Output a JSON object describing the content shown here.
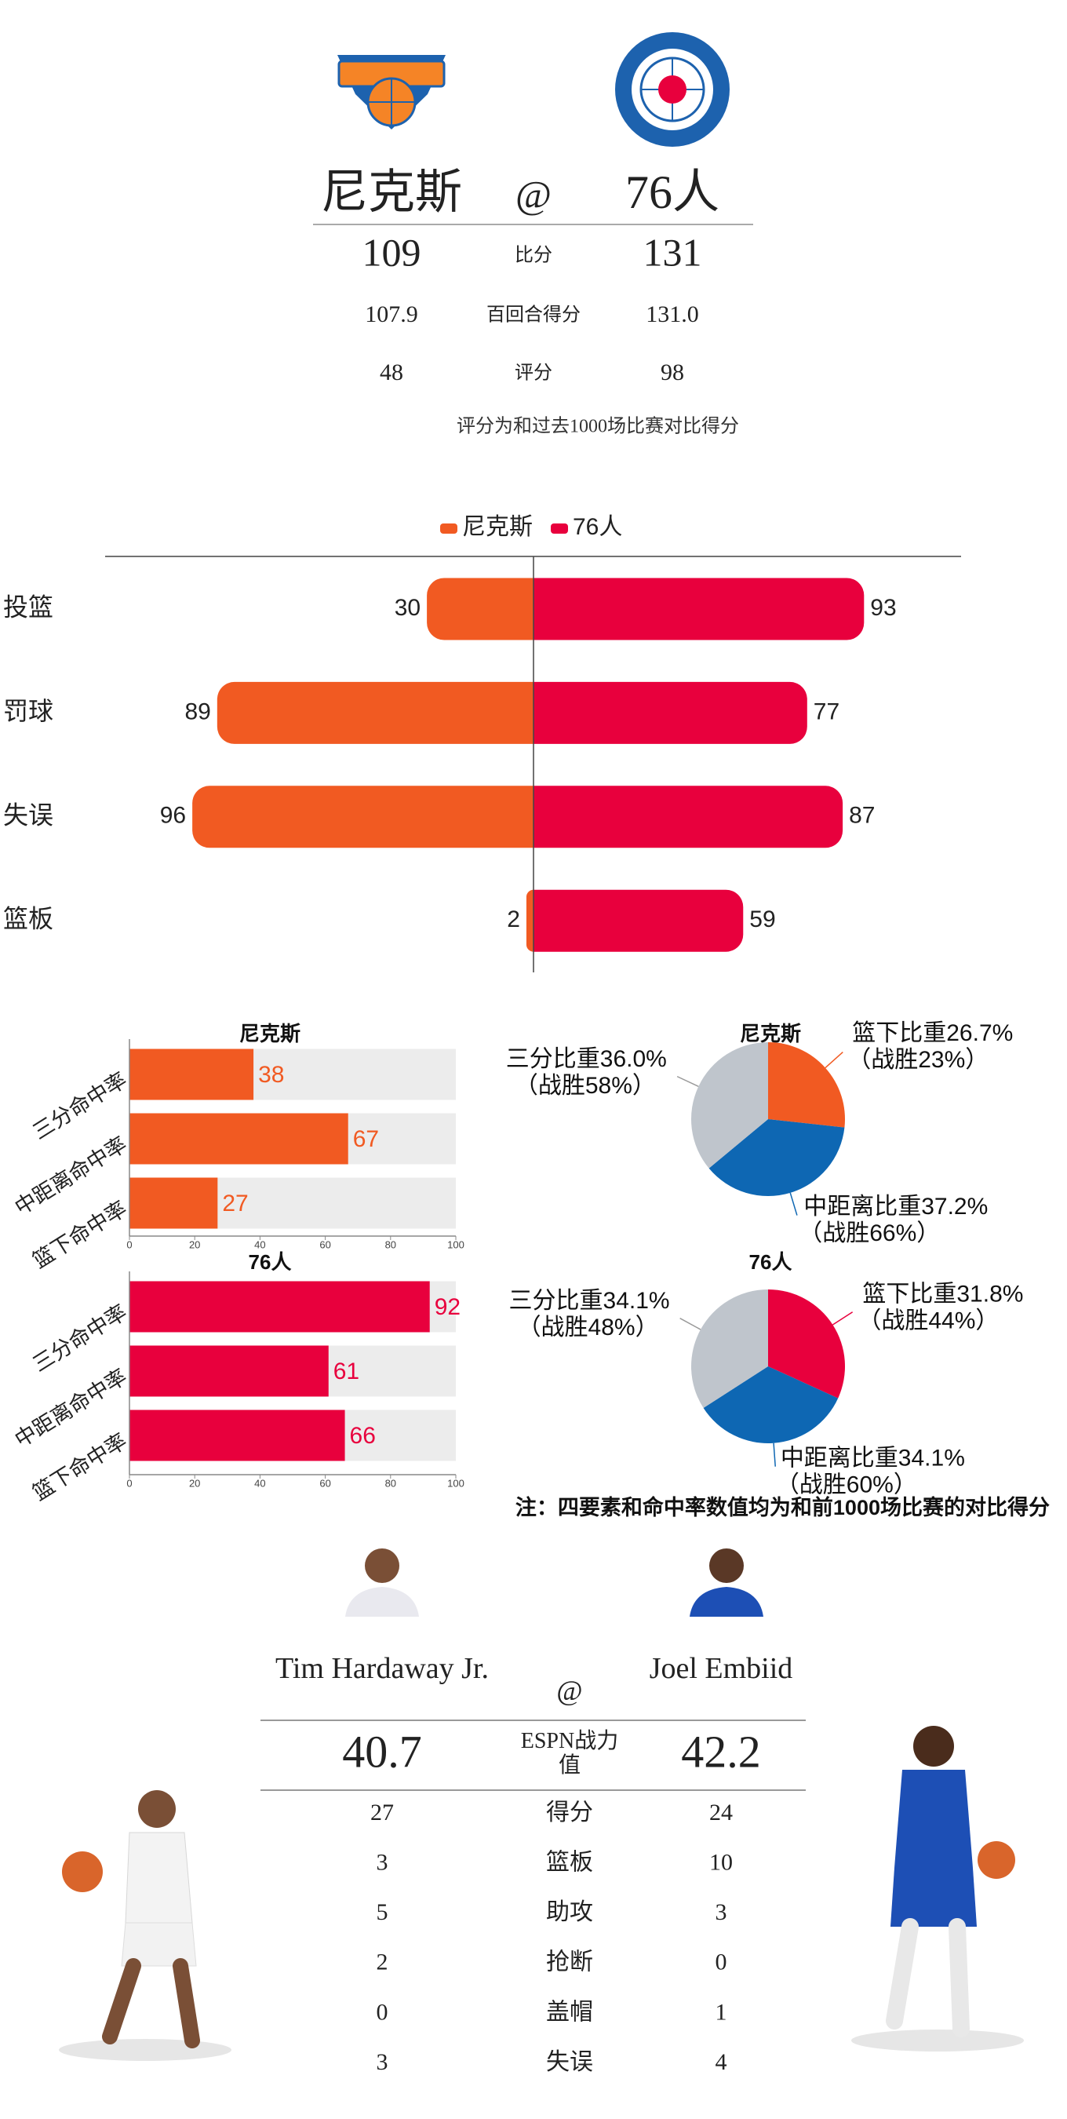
{
  "header": {
    "home": "尼克斯",
    "at": "@",
    "away": "76人"
  },
  "score_table": {
    "rows": [
      {
        "label": "比分",
        "home": "109",
        "away": "131"
      },
      {
        "label": "百回合得分",
        "home": "107.9",
        "away": "131.0"
      },
      {
        "label": "评分",
        "home": "48",
        "away": "98"
      }
    ],
    "note": "评分为和过去1000场比赛对比得分"
  },
  "chart_data": [
    {
      "type": "diverging_bar",
      "categories": [
        "投篮",
        "罚球",
        "失误",
        "篮板"
      ],
      "series": [
        {
          "name": "尼克斯",
          "color": "#f15a22",
          "values": [
            30,
            89,
            96,
            2
          ]
        },
        {
          "name": "76人",
          "color": "#e8003d",
          "values": [
            93,
            77,
            87,
            59
          ]
        }
      ],
      "xlim": [
        0,
        100
      ]
    },
    {
      "type": "bar",
      "title": "尼克斯",
      "categories": [
        "三分命中率",
        "中距离命中率",
        "篮下命中率"
      ],
      "values": [
        38,
        67,
        27
      ],
      "color": "#f15a22",
      "xlim": [
        0,
        100
      ],
      "xticks": [
        0,
        20,
        40,
        60,
        80,
        100
      ]
    },
    {
      "type": "bar",
      "title": "76人",
      "categories": [
        "三分命中率",
        "中距离命中率",
        "篮下命中率"
      ],
      "values": [
        92,
        61,
        66
      ],
      "color": "#e8003d",
      "xlim": [
        0,
        100
      ],
      "xticks": [
        0,
        20,
        40,
        60,
        80,
        100
      ]
    },
    {
      "type": "pie",
      "title": "尼克斯",
      "categories": [
        "篮下比重",
        "中距离比重",
        "三分比重"
      ],
      "values": [
        26.7,
        37.2,
        36.0
      ],
      "value_labels": [
        "篮下比重26.7%",
        "中距离比重37.2%",
        "三分比重36.0%"
      ],
      "sublabels": [
        "（战胜23%）",
        "（战胜66%）",
        "（战胜58%）"
      ],
      "colors": [
        "#f15a22",
        "#0e67b3",
        "#bfc5cc"
      ]
    },
    {
      "type": "pie",
      "title": "76人",
      "categories": [
        "篮下比重",
        "中距离比重",
        "三分比重"
      ],
      "values": [
        31.8,
        34.1,
        34.1
      ],
      "value_labels": [
        "篮下比重31.8%",
        "中距离比重34.1%",
        "三分比重34.1%"
      ],
      "sublabels": [
        "（战胜44%）",
        "（战胜60%）",
        "（战胜48%）"
      ],
      "colors": [
        "#e8003d",
        "#0e67b3",
        "#bfc5cc"
      ]
    }
  ],
  "chart_note": "注：四要素和命中率数值均为和前1000场比赛的对比得分",
  "players": {
    "home": "Tim Hardaway Jr.",
    "at": "@",
    "away": "Joel Embiid",
    "rows": [
      {
        "label": "ESPN战力值",
        "home": "40.7",
        "away": "42.2"
      },
      {
        "label": "得分",
        "home": "27",
        "away": "24"
      },
      {
        "label": "篮板",
        "home": "3",
        "away": "10"
      },
      {
        "label": "助攻",
        "home": "5",
        "away": "3"
      },
      {
        "label": "抢断",
        "home": "2",
        "away": "0"
      },
      {
        "label": "盖帽",
        "home": "0",
        "away": "1"
      },
      {
        "label": "失误",
        "home": "3",
        "away": "4"
      }
    ]
  }
}
